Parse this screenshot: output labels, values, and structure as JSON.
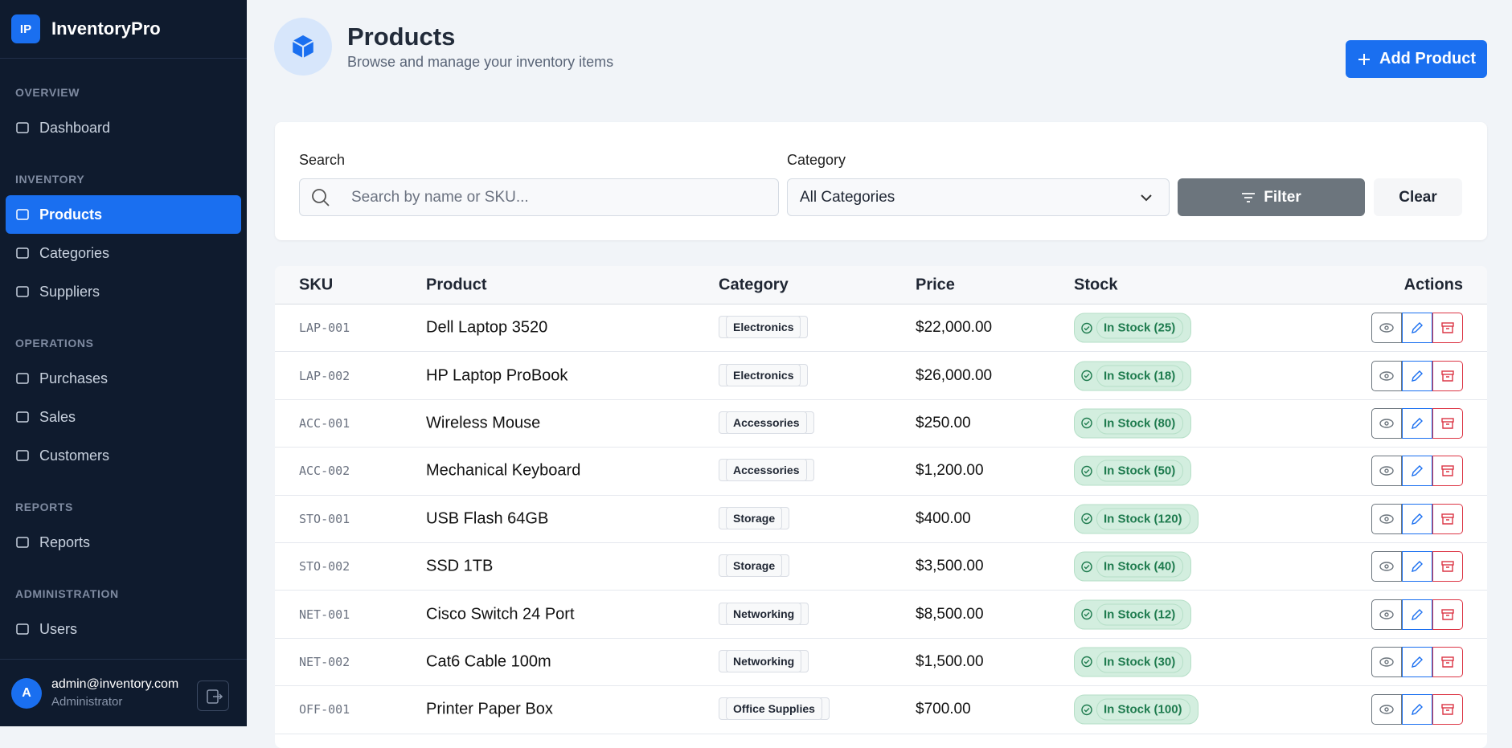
{
  "sidebar": {
    "logo": "IP",
    "brand": "InventoryPro",
    "sections": [
      {
        "label": "OVERVIEW",
        "items": [
          "Dashboard"
        ]
      },
      {
        "label": "INVENTORY",
        "items": [
          "Products",
          "Categories",
          "Suppliers"
        ]
      },
      {
        "label": "OPERATIONS",
        "items": [
          "Purchases",
          "Sales",
          "Customers"
        ]
      },
      {
        "label": "REPORTS",
        "items": [
          "Reports"
        ]
      },
      {
        "label": "ADMINISTRATION",
        "items": [
          "Users"
        ]
      }
    ],
    "active": "Products",
    "user": {
      "avatar": "A",
      "email": "admin@inventory.com",
      "role": "Administrator"
    }
  },
  "header": {
    "title": "Products",
    "subtitle": "Browse and manage your inventory items",
    "button": "Add Product"
  },
  "filters": {
    "search_label": "Search",
    "search_placeholder": "Search by name or SKU...",
    "category_label": "Category",
    "category_value": "All Categories",
    "filter_button": "Filter",
    "clear_button": "Clear"
  },
  "table": {
    "columns": [
      "SKU",
      "Product",
      "Category",
      "Price",
      "Stock",
      "Actions"
    ],
    "rows": [
      [
        "LAP-001",
        "Dell Laptop 3520",
        "Electronics",
        "$22,000.00",
        "In Stock (25)"
      ],
      [
        "LAP-002",
        "HP Laptop ProBook",
        "Electronics",
        "$26,000.00",
        "In Stock (18)"
      ],
      [
        "ACC-001",
        "Wireless Mouse",
        "Accessories",
        "$250.00",
        "In Stock (80)"
      ],
      [
        "ACC-002",
        "Mechanical Keyboard",
        "Accessories",
        "$1,200.00",
        "In Stock (50)"
      ],
      [
        "STO-001",
        "USB Flash 64GB",
        "Storage",
        "$400.00",
        "In Stock (120)"
      ],
      [
        "STO-002",
        "SSD 1TB",
        "Storage",
        "$3,500.00",
        "In Stock (40)"
      ],
      [
        "NET-001",
        "Cisco Switch 24 Port",
        "Networking",
        "$8,500.00",
        "In Stock (12)"
      ],
      [
        "NET-002",
        "Cat6 Cable 100m",
        "Networking",
        "$1,500.00",
        "In Stock (30)"
      ],
      [
        "OFF-001",
        "Printer Paper Box",
        "Office Supplies",
        "$700.00",
        "In Stock (100)"
      ]
    ]
  }
}
